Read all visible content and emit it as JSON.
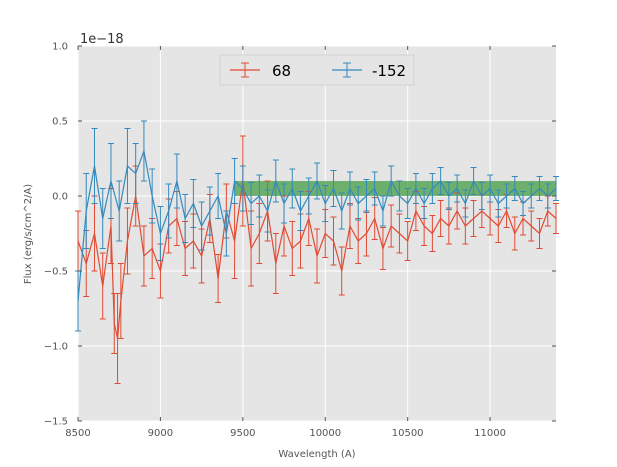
{
  "chart_data": {
    "type": "line",
    "title": "",
    "xlabel": "Wavelength (A)",
    "ylabel": "Flux (erg/s/cm^2/A)",
    "offset_label": "1e−18",
    "xlim": [
      8500,
      11400
    ],
    "ylim": [
      -1.5,
      1.0
    ],
    "xticks": [
      8500,
      9000,
      9500,
      10000,
      10500,
      11000
    ],
    "xtick_labels": [
      "8500",
      "9000",
      "9500",
      "10000",
      "10500",
      "11000"
    ],
    "yticks": [
      -1.5,
      -1.0,
      -0.5,
      0.0,
      0.5,
      1.0
    ],
    "ytick_labels": [
      "−1.5",
      "−1.0",
      "−0.5",
      "0.0",
      "0.5",
      "1.0"
    ],
    "grid": true,
    "legend_position": "top-center",
    "band": {
      "x0": 9450,
      "x1": 11400,
      "y0": 0.0,
      "y1": 0.1,
      "color": "#3a9a3a"
    },
    "series": [
      {
        "name": "68",
        "color": "#e24a33",
        "x": [
          8500,
          8550,
          8600,
          8650,
          8700,
          8720,
          8740,
          8760,
          8800,
          8850,
          8900,
          8950,
          9000,
          9050,
          9100,
          9150,
          9200,
          9250,
          9300,
          9350,
          9400,
          9450,
          9500,
          9550,
          9600,
          9650,
          9700,
          9750,
          9800,
          9850,
          9900,
          9950,
          10000,
          10050,
          10100,
          10150,
          10200,
          10250,
          10300,
          10350,
          10400,
          10450,
          10500,
          10550,
          10600,
          10650,
          10700,
          10750,
          10800,
          10850,
          10900,
          10950,
          11000,
          11050,
          11100,
          11150,
          11200,
          11250,
          11300,
          11350,
          11400
        ],
        "values": [
          -0.3,
          -0.45,
          -0.25,
          -0.6,
          -0.2,
          -0.85,
          -0.95,
          -0.7,
          -0.3,
          0.0,
          -0.4,
          -0.35,
          -0.5,
          -0.2,
          -0.15,
          -0.35,
          -0.3,
          -0.4,
          -0.15,
          -0.55,
          -0.1,
          -0.3,
          0.1,
          -0.35,
          -0.25,
          -0.1,
          -0.45,
          -0.2,
          -0.35,
          -0.3,
          -0.15,
          -0.4,
          -0.25,
          -0.3,
          -0.5,
          -0.2,
          -0.3,
          -0.25,
          -0.15,
          -0.35,
          -0.2,
          -0.25,
          -0.3,
          -0.1,
          -0.2,
          -0.25,
          -0.15,
          -0.2,
          -0.1,
          -0.2,
          -0.15,
          -0.1,
          -0.15,
          -0.2,
          -0.1,
          -0.25,
          -0.15,
          -0.2,
          -0.25,
          -0.1,
          -0.15
        ],
        "errors": [
          0.2,
          0.22,
          0.25,
          0.22,
          0.25,
          0.2,
          0.3,
          0.25,
          0.22,
          0.2,
          0.2,
          0.2,
          0.18,
          0.18,
          0.18,
          0.18,
          0.18,
          0.18,
          0.16,
          0.16,
          0.18,
          0.25,
          0.3,
          0.25,
          0.2,
          0.2,
          0.2,
          0.2,
          0.18,
          0.18,
          0.18,
          0.18,
          0.16,
          0.16,
          0.16,
          0.15,
          0.15,
          0.15,
          0.14,
          0.14,
          0.14,
          0.13,
          0.13,
          0.13,
          0.13,
          0.12,
          0.12,
          0.12,
          0.12,
          0.12,
          0.12,
          0.11,
          0.11,
          0.11,
          0.11,
          0.11,
          0.11,
          0.1,
          0.1,
          0.1,
          0.1
        ]
      },
      {
        "name": "-152",
        "color": "#348abd",
        "x": [
          8500,
          8550,
          8600,
          8650,
          8700,
          8750,
          8800,
          8850,
          8900,
          8950,
          9000,
          9050,
          9100,
          9150,
          9200,
          9250,
          9300,
          9350,
          9400,
          9450,
          9500,
          9550,
          9600,
          9650,
          9700,
          9750,
          9800,
          9850,
          9900,
          9950,
          10000,
          10050,
          10100,
          10150,
          10200,
          10250,
          10300,
          10350,
          10400,
          10450,
          10500,
          10550,
          10600,
          10650,
          10700,
          10750,
          10800,
          10850,
          10900,
          10950,
          11000,
          11050,
          11100,
          11150,
          11200,
          11250,
          11300,
          11350,
          11400
        ],
        "values": [
          -0.7,
          -0.1,
          0.2,
          -0.15,
          0.1,
          -0.1,
          0.2,
          0.15,
          0.3,
          0.0,
          -0.25,
          -0.1,
          0.1,
          -0.15,
          -0.05,
          -0.2,
          -0.1,
          0.0,
          -0.25,
          0.1,
          0.05,
          -0.05,
          0.0,
          -0.1,
          0.1,
          -0.05,
          0.05,
          -0.1,
          0.0,
          0.1,
          -0.05,
          0.05,
          -0.1,
          0.05,
          -0.05,
          0.0,
          0.05,
          -0.1,
          0.1,
          0.0,
          -0.05,
          0.05,
          -0.05,
          0.05,
          0.1,
          0.0,
          0.05,
          -0.05,
          0.1,
          0.0,
          0.05,
          -0.05,
          0.0,
          0.05,
          -0.05,
          0.0,
          0.05,
          0.0,
          0.05
        ],
        "errors": [
          0.2,
          0.25,
          0.25,
          0.2,
          0.25,
          0.2,
          0.25,
          0.2,
          0.2,
          0.18,
          0.18,
          0.18,
          0.18,
          0.16,
          0.16,
          0.16,
          0.16,
          0.15,
          0.15,
          0.15,
          0.15,
          0.14,
          0.14,
          0.14,
          0.14,
          0.13,
          0.13,
          0.13,
          0.12,
          0.12,
          0.12,
          0.12,
          0.12,
          0.11,
          0.11,
          0.11,
          0.11,
          0.1,
          0.1,
          0.1,
          0.1,
          0.1,
          0.1,
          0.1,
          0.09,
          0.09,
          0.09,
          0.09,
          0.09,
          0.09,
          0.09,
          0.09,
          0.08,
          0.08,
          0.08,
          0.08,
          0.08,
          0.08,
          0.08
        ]
      }
    ]
  }
}
